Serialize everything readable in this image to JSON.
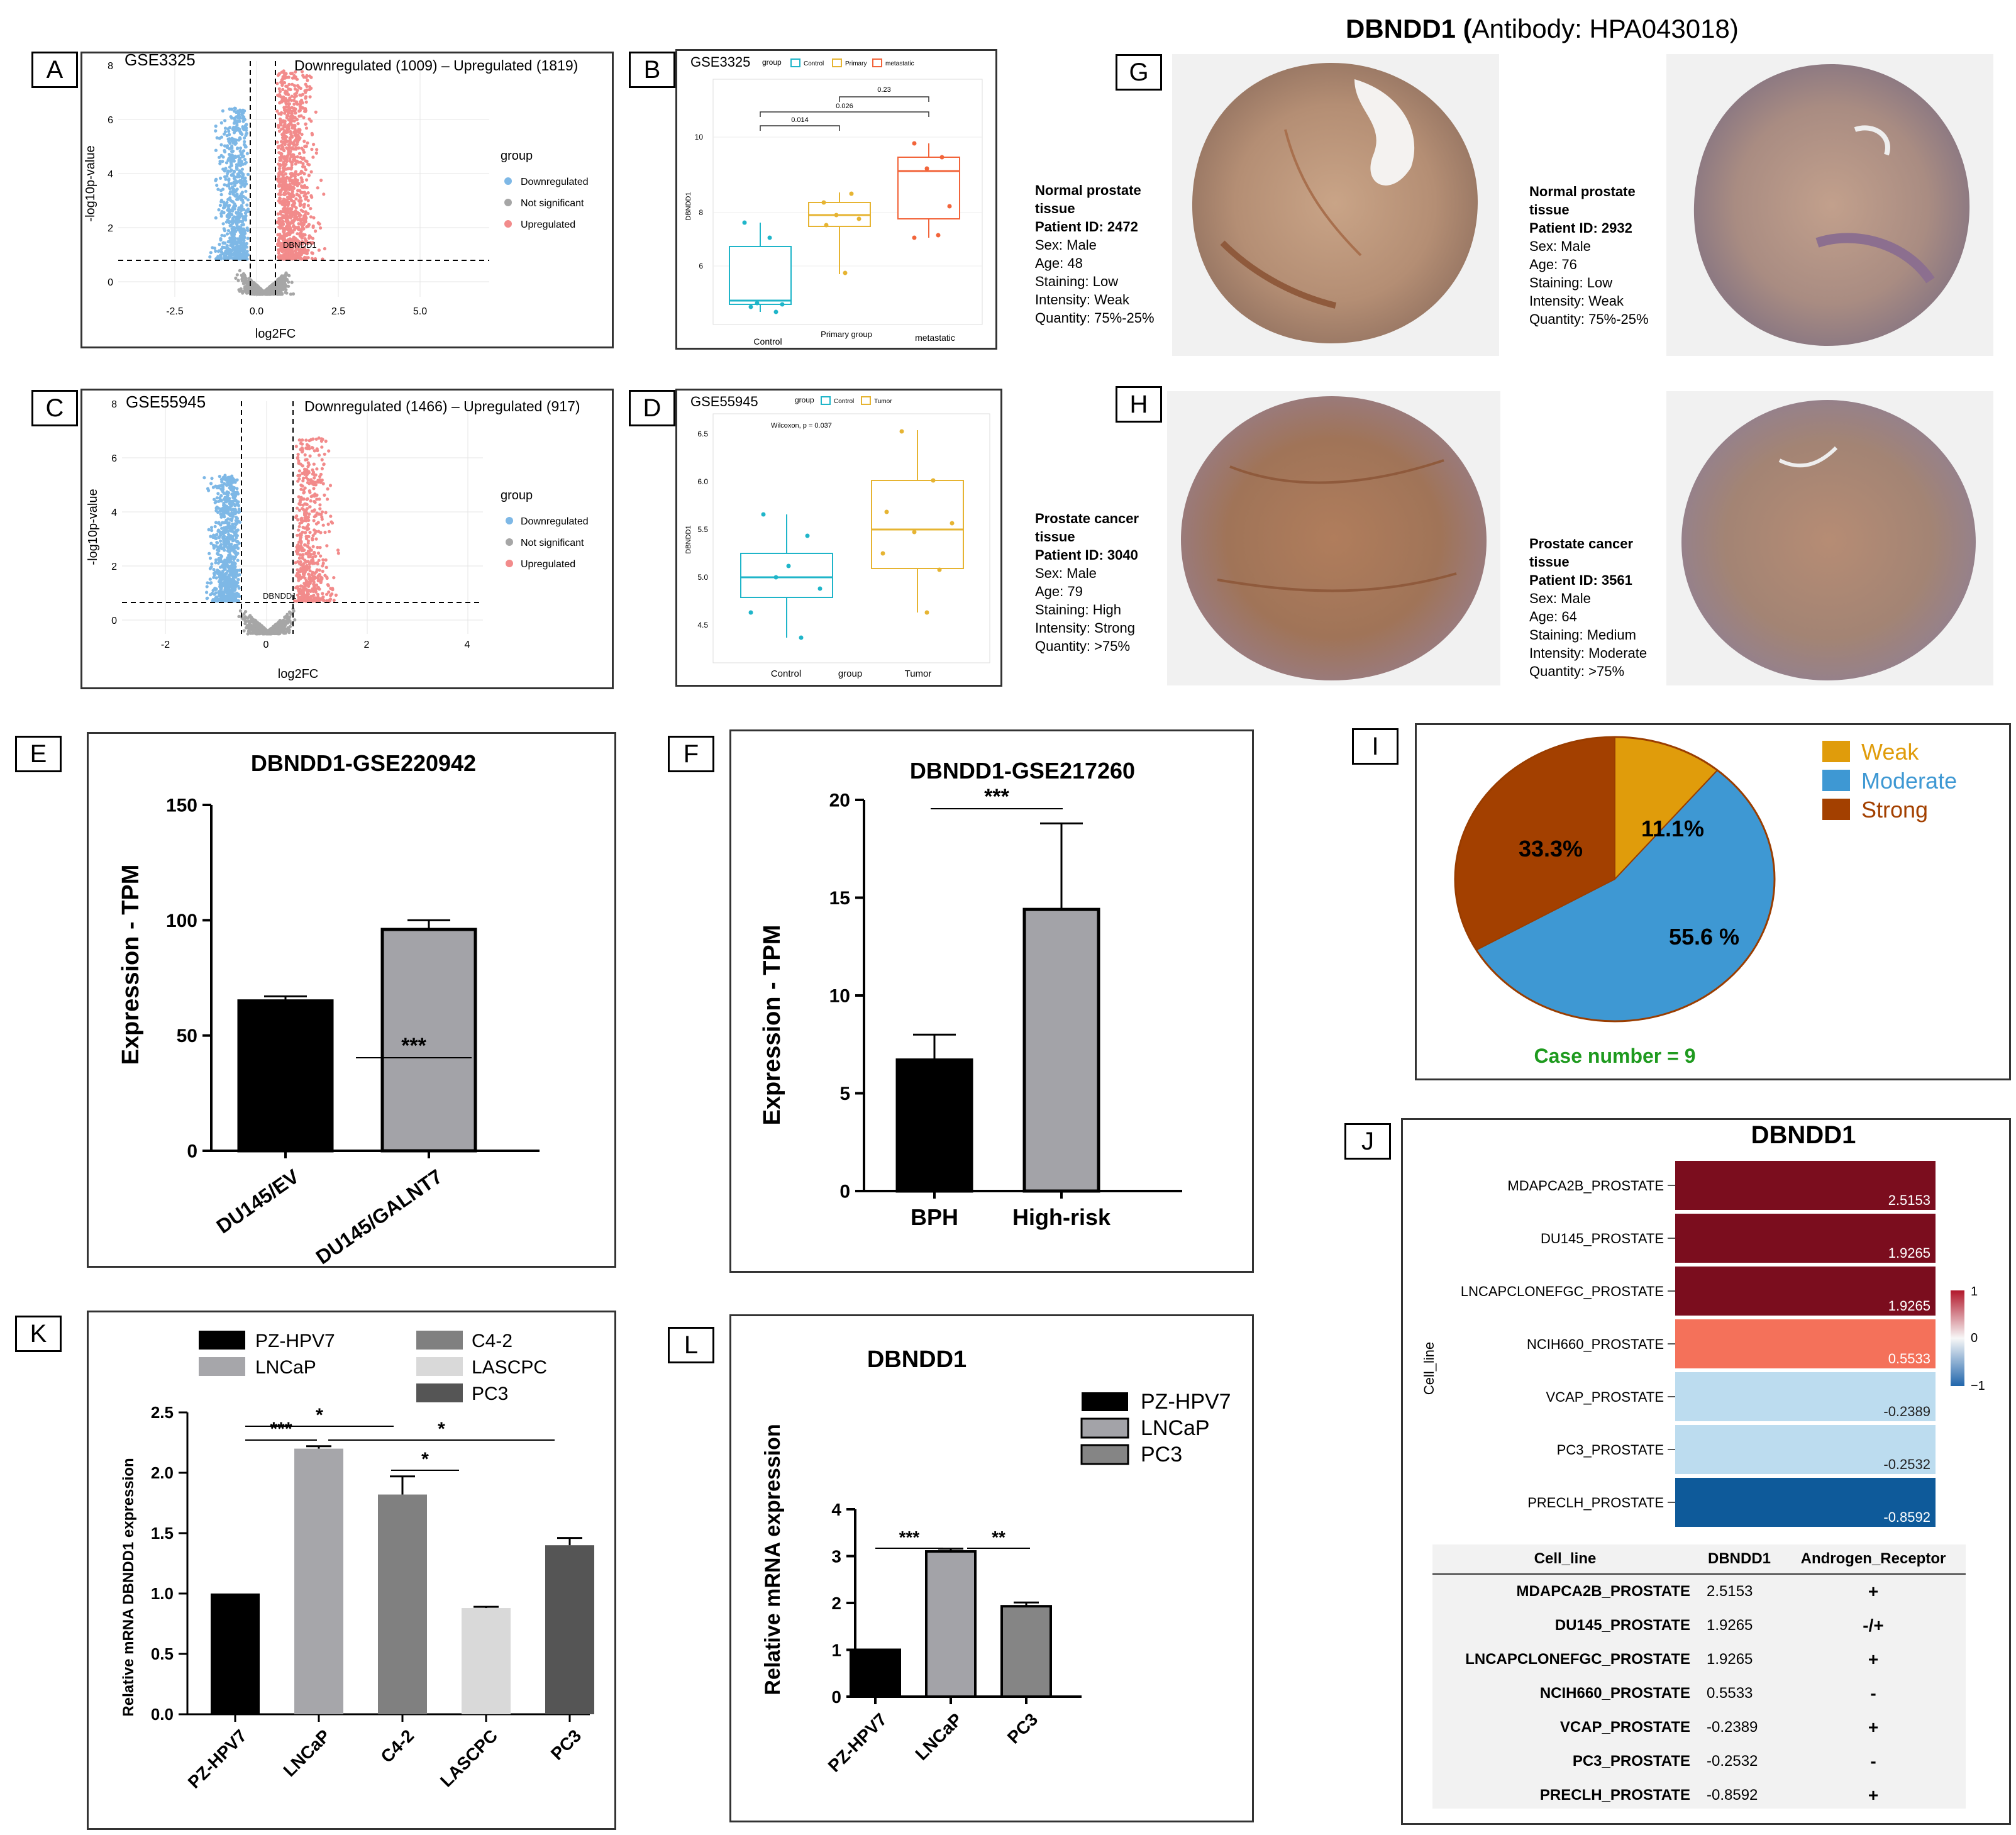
{
  "labels": {
    "A": "A",
    "B": "B",
    "C": "C",
    "D": "D",
    "E": "E",
    "F": "F",
    "G": "G",
    "H": "H",
    "I": "I",
    "J": "J",
    "K": "K",
    "L": "L"
  },
  "colors": {
    "down": "#7eb8e6",
    "up": "#f28b8b",
    "ns": "#a6a6a6",
    "control": "#1fb5c9",
    "primary": "#e6b432",
    "metastatic": "#f2643a",
    "tumor": "#e6b432",
    "weak": "#e09c0b",
    "moderate": "#3e98d3",
    "strong": "#a34000",
    "case": "#1e9a1e"
  },
  "volcanoA": {
    "dataset": "GSE3325",
    "summary": "Downregulated (1009) – Upregulated (1819)",
    "xlabel": "log2FC",
    "ylabel": "-log10p-value",
    "gene": "DBNDD1",
    "legend_title": "group",
    "legend": [
      "Downregulated",
      "Not significant",
      "Upregulated"
    ],
    "xticks": [
      "-2.5",
      "0.0",
      "2.5",
      "5.0"
    ],
    "yticks": [
      "0",
      "2",
      "4",
      "6",
      "8"
    ]
  },
  "boxB": {
    "dataset": "GSE3325",
    "legend_title": "group",
    "legend": [
      "Control",
      "Primary",
      "metastatic"
    ],
    "ylabel": "DBNDD1",
    "yticks": [
      "6",
      "8",
      "10"
    ],
    "categories": [
      "Control",
      "Primary group",
      "metastatic"
    ],
    "pvals": [
      "0.014",
      "0.026",
      "0.23"
    ]
  },
  "volcanoC": {
    "dataset": "GSE55945",
    "summary": "Downregulated (1466) – Upregulated (917)",
    "xlabel": "log2FC",
    "ylabel": "-log10p-value",
    "gene": "DBNDD1",
    "legend_title": "group",
    "legend": [
      "Downregulated",
      "Not significant",
      "Upregulated"
    ],
    "xticks": [
      "-2",
      "0",
      "2",
      "4"
    ],
    "yticks": [
      "0",
      "2",
      "4",
      "6",
      "8"
    ]
  },
  "boxD": {
    "dataset": "GSE55945",
    "legend_title": "group",
    "legend": [
      "Control",
      "Tumor"
    ],
    "ylabel": "DBNDD1",
    "yticks": [
      "4.5",
      "5.0",
      "5.5",
      "6.0",
      "6.5"
    ],
    "categories": [
      "Control",
      "Tumor"
    ],
    "xlabel": "group",
    "stat": "Wilcoxon, p = 0.037"
  },
  "ihc": {
    "title_gene": "DBNDD1 (",
    "title_rest": "Antibody: HPA043018)",
    "samples": [
      {
        "head": "Normal prostate tissue",
        "pid": "Patient ID: 2472",
        "lines": [
          "Sex: Male",
          "Age: 48",
          "Staining: Low",
          "Intensity: Weak",
          "Quantity: 75%-25%"
        ]
      },
      {
        "head": "Normal prostate tissue",
        "pid": "Patient ID: 2932",
        "lines": [
          "Sex: Male",
          "Age: 76",
          "Staining: Low",
          "Intensity: Weak",
          "Quantity: 75%-25%"
        ]
      },
      {
        "head": "Prostate cancer tissue",
        "pid": "Patient ID: 3040",
        "lines": [
          "Sex: Male",
          "Age: 79",
          "Staining: High",
          "Intensity: Strong",
          "Quantity: >75%"
        ]
      },
      {
        "head": "Prostate cancer tissue",
        "pid": "Patient ID: 3561",
        "lines": [
          "Sex: Male",
          "Age: 64",
          "Staining: Medium",
          "Intensity: Moderate",
          "Quantity: >75%"
        ]
      }
    ]
  },
  "pie": {
    "legend": [
      "Weak",
      "Moderate",
      "Strong"
    ],
    "case": "Case number = 9"
  },
  "barE": {
    "title": "DBNDD1-GSE220942",
    "ylabel": "Expression - TPM",
    "sig": "***"
  },
  "barF": {
    "title": "DBNDD1-GSE217260",
    "ylabel": "Expression - TPM",
    "sig": "***"
  },
  "barK": {
    "ylabel": "Relative mRNA DBNDD1 expression",
    "legend": [
      "PZ-HPV7",
      "C4-2",
      "LNCaP",
      "LASCPC",
      "PC3"
    ],
    "sigs": [
      "***",
      "*",
      "*",
      "*"
    ]
  },
  "barL": {
    "title": "DBNDD1",
    "ylabel": "Relative mRNA expression",
    "legend": [
      "PZ-HPV7",
      "LNCaP",
      "PC3"
    ],
    "sigs": [
      "***",
      "**"
    ]
  },
  "heatJ": {
    "title": "DBNDD1",
    "ylabel": "Cell_line",
    "scale": [
      "1",
      "0",
      "−1"
    ]
  },
  "tableJ": {
    "headers": [
      "Cell_line",
      "DBNDD1",
      "Androgen_Receptor"
    ],
    "rows": [
      [
        "MDAPCA2B_PROSTATE",
        "2.5153",
        "+"
      ],
      [
        "DU145_PROSTATE",
        "1.9265",
        "-/+"
      ],
      [
        "LNCAPCLONEFGC_PROSTATE",
        "1.9265",
        "+"
      ],
      [
        "NCIH660_PROSTATE",
        "0.5533",
        "-"
      ],
      [
        "VCAP_PROSTATE",
        "-0.2389",
        "+"
      ],
      [
        "PC3_PROSTATE",
        "-0.2532",
        "-"
      ],
      [
        "PRECLH_PROSTATE",
        "-0.8592",
        "+"
      ]
    ]
  },
  "chart_data": [
    {
      "type": "bar",
      "title": "DBNDD1-GSE220942",
      "ylabel": "Expression - TPM",
      "categories": [
        "DU145/EV",
        "DU145/GALNT7"
      ],
      "values": [
        65,
        96
      ],
      "errors": [
        2,
        4
      ],
      "ylim": [
        0,
        150
      ],
      "yticks": [
        0,
        50,
        100,
        150
      ],
      "colors": [
        "#000000",
        "#a3a3a8"
      ]
    },
    {
      "type": "bar",
      "title": "DBNDD1-GSE217260",
      "ylabel": "Expression - TPM",
      "categories": [
        "BPH",
        "High-risk"
      ],
      "values": [
        6.7,
        14.4
      ],
      "errors": [
        1.3,
        4.4
      ],
      "ylim": [
        0,
        20
      ],
      "yticks": [
        0,
        5,
        10,
        15,
        20
      ],
      "colors": [
        "#000000",
        "#a3a3a8"
      ]
    },
    {
      "type": "pie",
      "categories": [
        "Weak",
        "Moderate",
        "Strong"
      ],
      "values": [
        11.1,
        55.6,
        33.3
      ],
      "labels": [
        "11.1%",
        "55.6 %",
        "33.3%"
      ]
    },
    {
      "type": "heatmap",
      "title": "DBNDD1",
      "categories": [
        "MDAPCA2B_PROSTATE",
        "DU145_PROSTATE",
        "LNCAPCLONEFGC_PROSTATE",
        "NCIH660_PROSTATE",
        "VCAP_PROSTATE",
        "PC3_PROSTATE",
        "PRECLH_PROSTATE"
      ],
      "values": [
        2.5153,
        1.9265,
        1.9265,
        0.5533,
        -0.2389,
        -0.2532,
        -0.8592
      ],
      "labels": [
        "2.5153",
        "1.9265",
        "1.9265",
        "0.5533",
        "-0.2389",
        "-0.2532",
        "-0.8592"
      ],
      "colors": [
        "#7b0d1e",
        "#7b0d1e",
        "#7b0d1e",
        "#f4715a",
        "#bcdcef",
        "#bcdcef",
        "#0e5a9a"
      ]
    },
    {
      "type": "bar",
      "ylabel": "Relative mRNA DBNDD1 expression",
      "categories": [
        "PZ-HPV7",
        "LNCaP",
        "C4-2",
        "LASCPC",
        "PC3"
      ],
      "values": [
        1.0,
        2.2,
        1.82,
        0.88,
        1.4
      ],
      "errors": [
        0,
        0.02,
        0.15,
        0.01,
        0.06
      ],
      "ylim": [
        0,
        2.5
      ],
      "yticks": [
        "0.0",
        "0.5",
        "1.0",
        "1.5",
        "2.0",
        "2.5"
      ],
      "colors": [
        "#000000",
        "#a6a6aa",
        "#808080",
        "#d9d9d9",
        "#555555"
      ]
    },
    {
      "type": "bar",
      "title": "DBNDD1",
      "ylabel": "Relative mRNA expression",
      "categories": [
        "PZ-HPV7",
        "LNCaP",
        "PC3"
      ],
      "values": [
        1.0,
        3.1,
        1.93
      ],
      "errors": [
        0,
        0.06,
        0.08
      ],
      "ylim": [
        0,
        4
      ],
      "yticks": [
        0,
        1,
        2,
        3,
        4
      ],
      "colors": [
        "#000000",
        "#a3a3a8",
        "#858585"
      ]
    }
  ]
}
